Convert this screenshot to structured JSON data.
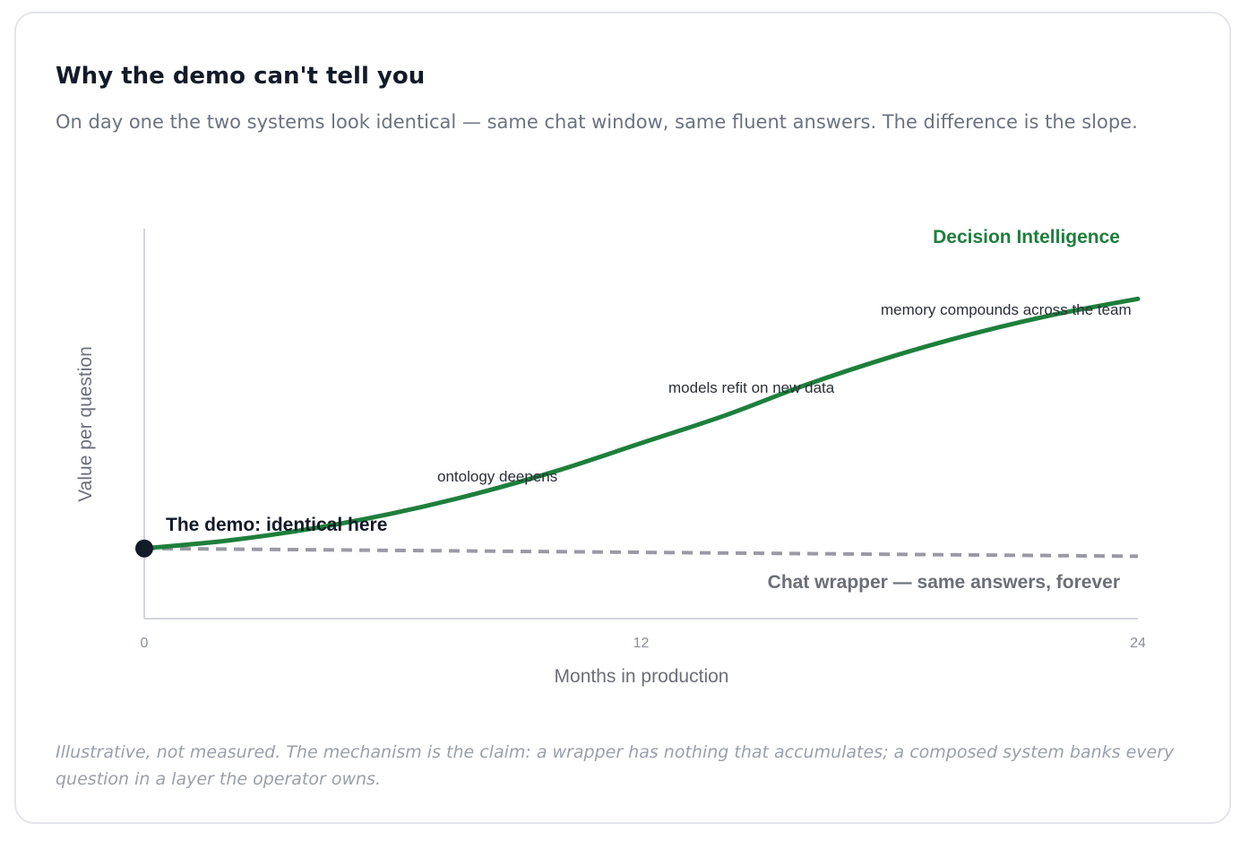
{
  "card": {
    "title": "Why the demo can't tell you",
    "subtitle": "On day one the two systems look identical — same chat window, same fluent answers. The difference is the slope.",
    "note": "Illustrative, not measured. The mechanism is the claim: a wrapper has nothing that accumulates; a composed system banks every question in a layer the operator owns."
  },
  "colors": {
    "di": "#1e7f3c",
    "wrapper": "#9a9aa4",
    "wrapper_label": "#6b6f78",
    "axis": "#d3d5db",
    "text": "#2a2f3a",
    "dark": "#131a28"
  },
  "chart_data": {
    "type": "line",
    "xlabel": "Months in production",
    "ylabel": "Value per question",
    "xlim": [
      0,
      24
    ],
    "ylim": [
      0,
      100
    ],
    "xticks": [
      0,
      12,
      24
    ],
    "series": [
      {
        "name": "Decision Intelligence",
        "style": "solid",
        "x": [
          0,
          2,
          4,
          6,
          8,
          10,
          12,
          14,
          16,
          18,
          20,
          22,
          24
        ],
        "y": [
          18,
          20,
          23,
          27,
          32,
          38,
          45,
          52,
          60,
          67,
          73,
          78,
          82
        ]
      },
      {
        "name": "Chat wrapper — same answers, forever",
        "style": "dashed",
        "x": [
          0,
          24
        ],
        "y": [
          18,
          16
        ]
      }
    ],
    "annotations": [
      {
        "text": "The demo: identical here",
        "x": 0,
        "y": 18,
        "emphasis": "bold"
      },
      {
        "text": "ontology deepens",
        "x": 9,
        "y": 36
      },
      {
        "text": "models refit on new data",
        "x": 15,
        "y": 59
      },
      {
        "text": "memory compounds across the team",
        "x": 21,
        "y": 79
      }
    ]
  }
}
